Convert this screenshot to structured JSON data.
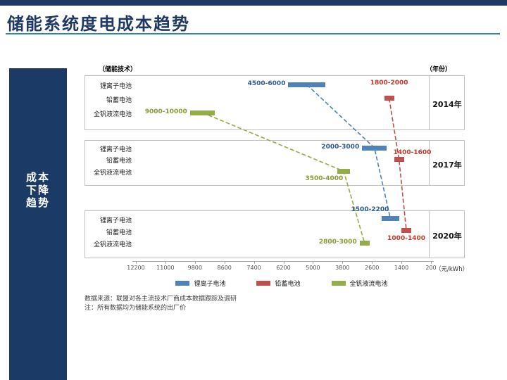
{
  "page": {
    "title": "储能系统度电成本趋势",
    "sidebar_lines": [
      "成本",
      "下降",
      "趋势"
    ],
    "notes": [
      "数据来源：联盟对各主流技术厂商成本数据跟踪及调研",
      "注：所有数据均为储能系统的出厂价"
    ]
  },
  "chart_data": {
    "type": "bar",
    "subtype": "horizontal-range-bars-with-trend-lines",
    "title": "储能系统度电成本趋势",
    "top_left_label": "（储能技术）",
    "top_right_label": "（年份）",
    "x_unit": "（元/kWh）",
    "x_axis": {
      "ticks": [
        12200,
        11000,
        9800,
        8600,
        7400,
        6200,
        5000,
        3800,
        2600,
        1400,
        200
      ],
      "min": 200,
      "max": 12200,
      "reversed": true
    },
    "panels": [
      {
        "year": "2014年",
        "rows": [
          "锂离子电池",
          "铅蓄电池",
          "全钒液流电池"
        ]
      },
      {
        "year": "2017年",
        "rows": [
          "锂离子电池",
          "铅蓄电池",
          "全钒液流电池"
        ]
      },
      {
        "year": "2020年",
        "rows": [
          "锂离子电池",
          "铅蓄电池",
          "全钒液流电池"
        ]
      }
    ],
    "series": [
      {
        "name": "锂离子电池",
        "row": 0,
        "color": "#4f81bd",
        "text_color": "#2d5a96",
        "points": [
          {
            "panel": 0,
            "range": [
              4500,
              6000
            ],
            "label": "4500-6000",
            "label_pos": "left"
          },
          {
            "panel": 1,
            "range": [
              2000,
              3000
            ],
            "label": "2000-3000",
            "label_pos": "left"
          },
          {
            "panel": 2,
            "range": [
              1500,
              2200
            ],
            "label": "1500-2200",
            "label_pos": "above-left"
          }
        ]
      },
      {
        "name": "铅蓄电池",
        "row": 1,
        "color": "#c0504d",
        "text_color": "#c0392b",
        "points": [
          {
            "panel": 0,
            "range": [
              1800,
              2000
            ],
            "label": "1800-2000",
            "label_pos": "above"
          },
          {
            "panel": 1,
            "range": [
              1400,
              1600
            ],
            "label": "1400-1600",
            "label_pos": "above-right"
          },
          {
            "panel": 2,
            "range": [
              1000,
              1400
            ],
            "label": "1000-1400",
            "label_pos": "below"
          }
        ]
      },
      {
        "name": "全钒液流电池",
        "row": 2,
        "color": "#94ad49",
        "text_color": "#8a9a33",
        "points": [
          {
            "panel": 0,
            "range": [
              9000,
              10000
            ],
            "label": "9000-10000",
            "label_pos": "left"
          },
          {
            "panel": 1,
            "range": [
              3500,
              4000
            ],
            "label": "3500-4000",
            "label_pos": "below-left"
          },
          {
            "panel": 2,
            "range": [
              2800,
              3000
            ],
            "label": "2800-3000",
            "label_pos": "left"
          }
        ]
      }
    ],
    "legend": [
      {
        "label": "锂离子电池",
        "color": "#4f81bd"
      },
      {
        "label": "铅蓄电池",
        "color": "#c0504d"
      },
      {
        "label": "全钒液流电池",
        "color": "#94ad49"
      }
    ]
  }
}
